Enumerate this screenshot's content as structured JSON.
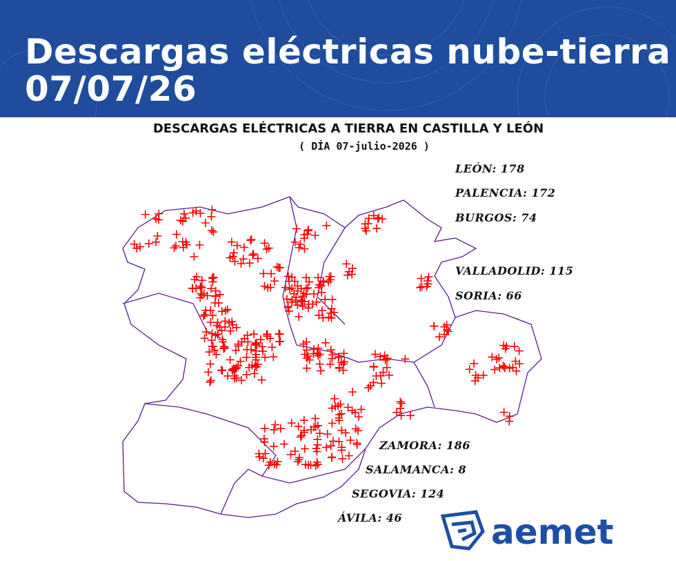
{
  "header": {
    "title": "Descargas eléctricas nube-tierra",
    "date": "07/07/26"
  },
  "map": {
    "title": "DESCARGAS ELÉCTRICAS A TIERRA EN CASTILLA Y LEÓN",
    "subtitle": "( DÍA 07-julio-2026 )",
    "provinces_top": [
      "LEÓN: 178",
      "PALENCIA: 172",
      "BURGOS: 74",
      "VALLADOLID: 115",
      "SORIA: 66"
    ],
    "provinces_bottom": [
      "ZAMORA: 186",
      "SALAMANCA: 8",
      "SEGOVIA: 124",
      "ÁVILA: 46"
    ]
  },
  "logo": {
    "text": "aemet"
  }
}
